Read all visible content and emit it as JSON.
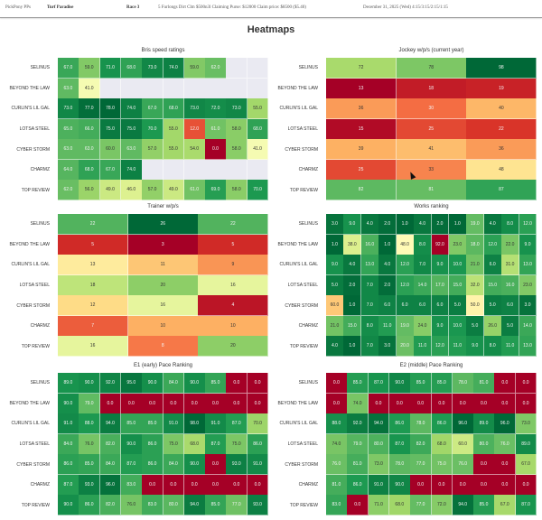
{
  "header": {
    "app": "PickPony PPs",
    "track": "Turf Paradise",
    "race": "Race 3",
    "description": "5 Furlongs Dirt Clm $500n3l Claiming Purse: $12000 Claim price: $8500 ($5.40)",
    "datetime": "December 31, 2025 (Wed) 4:15/3:15/2:15/1:15"
  },
  "page_title": "Heatmaps",
  "horses": [
    "SELINUS",
    "BEYOND THE LAW",
    "CURLIN'S LIL GAL",
    "LOTSA STEEL",
    "CYBER STORM",
    "CHARMZ",
    "TOP REVIEW"
  ],
  "chart_data": [
    {
      "type": "heatmap",
      "id": "bris",
      "title": "Bris speed ratings",
      "colormap": "RdYlGn",
      "vmin": 0,
      "vmax": 78,
      "rows": [
        "SELINUS",
        "BEYOND THE LAW",
        "CURLIN'S LIL GAL",
        "LOTSA STEEL",
        "CYBER STORM",
        "CHARMZ",
        "TOP REVIEW"
      ],
      "values": [
        [
          67.0,
          59.0,
          71.0,
          68.0,
          73.0,
          74.0,
          59.0,
          62.0,
          null,
          null
        ],
        [
          63.0,
          41.0,
          null,
          null,
          null,
          null,
          null,
          null,
          null,
          null
        ],
        [
          73.0,
          77.0,
          78.0,
          74.0,
          67.0,
          68.0,
          73.0,
          72.0,
          73.0,
          55.0
        ],
        [
          65.0,
          66.0,
          75.0,
          75.0,
          70.0,
          55.0,
          12.0,
          61.0,
          58.0,
          68.0
        ],
        [
          63.0,
          63.0,
          60.0,
          63.0,
          57.0,
          55.0,
          54.0,
          0.0,
          58.0,
          41.0
        ],
        [
          64.0,
          68.0,
          67.0,
          74.0,
          null,
          null,
          null,
          null,
          null,
          null
        ],
        [
          62.0,
          56.0,
          49.0,
          46.0,
          57.0,
          49.0,
          61.0,
          69.0,
          58.0,
          70.0
        ]
      ],
      "decimals": 1
    },
    {
      "type": "heatmap",
      "id": "jockey",
      "title": "Jockey w/p/s (current year)",
      "colormap": "RdYlGn",
      "vmin": 13,
      "vmax": 98,
      "rows": [
        "SELINUS",
        "BEYOND THE LAW",
        "CURLIN'S LIL GAL",
        "LOTSA STEEL",
        "CYBER STORM",
        "CHARMZ",
        "TOP REVIEW"
      ],
      "values": [
        [
          72,
          78,
          98
        ],
        [
          13,
          18,
          19
        ],
        [
          36,
          30,
          40
        ],
        [
          15,
          25,
          22
        ],
        [
          39,
          41,
          36
        ],
        [
          25,
          33,
          48
        ],
        [
          82,
          81,
          87
        ]
      ],
      "decimals": 0
    },
    {
      "type": "heatmap",
      "id": "trainer",
      "title": "Trainer w/p/s",
      "colormap": "RdYlGn",
      "vmin": 3,
      "vmax": 26,
      "rows": [
        "SELINUS",
        "BEYOND THE LAW",
        "CURLIN'S LIL GAL",
        "LOTSA STEEL",
        "CYBER STORM",
        "CHARMZ",
        "TOP REVIEW"
      ],
      "values": [
        [
          22,
          26,
          22
        ],
        [
          5,
          3,
          5
        ],
        [
          13,
          11,
          9
        ],
        [
          18,
          20,
          16
        ],
        [
          12,
          16,
          4
        ],
        [
          7,
          10,
          10
        ],
        [
          16,
          8,
          20
        ]
      ],
      "decimals": 0
    },
    {
      "type": "heatmap",
      "id": "works",
      "title": "Works ranking",
      "colormap": "RdYlGn_r",
      "vmin": 1,
      "vmax": 92,
      "rows": [
        "SELINUS",
        "BEYOND THE LAW",
        "CURLIN'S LIL GAL",
        "LOTSA STEEL",
        "CYBER STORM",
        "CHARMZ",
        "TOP REVIEW"
      ],
      "values": [
        [
          3.0,
          9.0,
          4.0,
          2.0,
          1.0,
          4.0,
          2.0,
          1.0,
          19.0,
          4.0,
          8.0,
          12.0
        ],
        [
          1.0,
          38.0,
          16.0,
          1.0,
          48.0,
          8.0,
          92.0,
          23.0,
          18.0,
          12.0,
          22.0,
          9.0
        ],
        [
          9.0,
          4.0,
          13.0,
          4.0,
          12.0,
          7.0,
          9.0,
          10.0,
          21.0,
          6.0,
          31.0,
          13.0
        ],
        [
          5.0,
          2.0,
          7.0,
          2.0,
          12.0,
          14.0,
          17.0,
          15.0,
          32.0,
          15.0,
          16.0,
          23.0
        ],
        [
          60.0,
          1.0,
          7.0,
          6.0,
          6.0,
          6.0,
          6.0,
          5.0,
          50.0,
          5.0,
          6.0,
          3.0
        ],
        [
          21.0,
          15.0,
          8.0,
          11.0,
          19.0,
          24.0,
          9.0,
          10.0,
          5.0,
          26.0,
          5.0,
          14.0
        ],
        [
          4.0,
          1.0,
          7.0,
          3.0,
          20.0,
          11.0,
          12.0,
          11.0,
          9.0,
          8.0,
          11.0,
          13.0
        ]
      ],
      "decimals": 1
    },
    {
      "type": "heatmap",
      "id": "e1",
      "title": "E1 (early) Pace Ranking",
      "colormap": "RdYlGn",
      "vmin": 0,
      "vmax": 98,
      "rows": [
        "SELINUS",
        "BEYOND THE LAW",
        "CURLIN'S LIL GAL",
        "LOTSA STEEL",
        "CYBER STORM",
        "CHARMZ",
        "TOP REVIEW"
      ],
      "values": [
        [
          89.0,
          90.0,
          92.0,
          95.0,
          90.0,
          84.0,
          90.0,
          85.0,
          0.0,
          0.0
        ],
        [
          90.0,
          79.0,
          0.0,
          0.0,
          0.0,
          0.0,
          0.0,
          0.0,
          0.0,
          0.0
        ],
        [
          91.0,
          88.0,
          94.0,
          85.0,
          85.0,
          91.0,
          98.0,
          91.0,
          87.0,
          70.0
        ],
        [
          84.0,
          76.0,
          82.0,
          90.0,
          86.0,
          75.0,
          68.0,
          87.0,
          75.0,
          86.0
        ],
        [
          86.0,
          85.0,
          84.0,
          87.0,
          86.0,
          84.0,
          90.0,
          0.0,
          93.0,
          91.0
        ],
        [
          87.0,
          93.0,
          96.0,
          83.0,
          0.0,
          0.0,
          0.0,
          0.0,
          0.0,
          0.0
        ],
        [
          90.0,
          86.0,
          82.0,
          76.0,
          83.0,
          80.0,
          94.0,
          85.0,
          77.0,
          93.0
        ]
      ],
      "decimals": 1
    },
    {
      "type": "heatmap",
      "id": "e2",
      "title": "E2 (middle) Pace Ranking",
      "colormap": "RdYlGn",
      "vmin": 0,
      "vmax": 96,
      "rows": [
        "SELINUS",
        "BEYOND THE LAW",
        "CURLIN'S LIL GAL",
        "LOTSA STEEL",
        "CYBER STORM",
        "CHARMZ",
        "TOP REVIEW"
      ],
      "values": [
        [
          0.0,
          85.0,
          87.0,
          90.0,
          85.0,
          85.0,
          78.0,
          81.0,
          0.0,
          0.0
        ],
        [
          0.0,
          74.0,
          0.0,
          0.0,
          0.0,
          0.0,
          0.0,
          0.0,
          0.0,
          0.0
        ],
        [
          88.0,
          92.0,
          94.0,
          86.0,
          78.0,
          86.0,
          96.0,
          89.0,
          96.0,
          73.0
        ],
        [
          74.0,
          79.0,
          80.0,
          87.0,
          82.0,
          68.0,
          60.0,
          80.0,
          76.0,
          89.0
        ],
        [
          76.0,
          81.0,
          73.0,
          78.0,
          77.0,
          75.0,
          76.0,
          0.0,
          0.0,
          67.0
        ],
        [
          81.0,
          86.0,
          91.0,
          90.0,
          0.0,
          0.0,
          0.0,
          0.0,
          0.0,
          0.0
        ],
        [
          83.0,
          0.0,
          71.0,
          68.0,
          77.0,
          72.0,
          94.0,
          85.0,
          67.0,
          87.0
        ]
      ],
      "decimals": 1
    }
  ]
}
